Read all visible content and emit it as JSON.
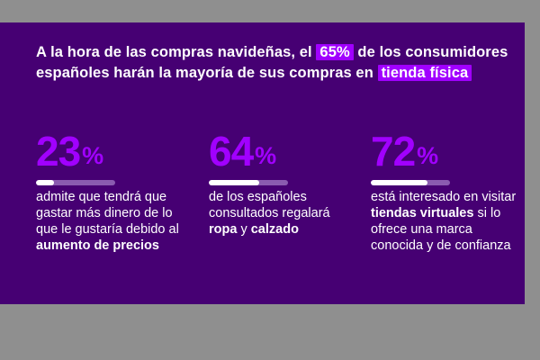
{
  "colors": {
    "background": "#460073",
    "accent": "#a100ff",
    "text": "#ffffff"
  },
  "headline": {
    "part1": "A la hora de las compras navideñas, el ",
    "highlight1": "65%",
    "part2": " de los consumidores españoles harán la mayoría de sus compras en ",
    "highlight2": "tienda física"
  },
  "stats": [
    {
      "number": "23",
      "unit": "%",
      "progress": 0.23,
      "segments": [
        {
          "text": "admite que tendrá que gastar más dinero de lo que le gustaría debido al ",
          "bold": false
        },
        {
          "text": "aumento de precios",
          "bold": true
        }
      ]
    },
    {
      "number": "64",
      "unit": "%",
      "progress": 0.64,
      "segments": [
        {
          "text": "de los españoles consultados regalará ",
          "bold": false
        },
        {
          "text": "ropa",
          "bold": true
        },
        {
          "text": " y ",
          "bold": false
        },
        {
          "text": "calzado",
          "bold": true
        }
      ]
    },
    {
      "number": "72",
      "unit": "%",
      "progress": 0.72,
      "segments": [
        {
          "text": "está interesado en visitar ",
          "bold": false
        },
        {
          "text": "tiendas virtuales",
          "bold": true
        },
        {
          "text": " si lo ofrece una marca conocida y de confianza",
          "bold": false
        }
      ]
    }
  ]
}
